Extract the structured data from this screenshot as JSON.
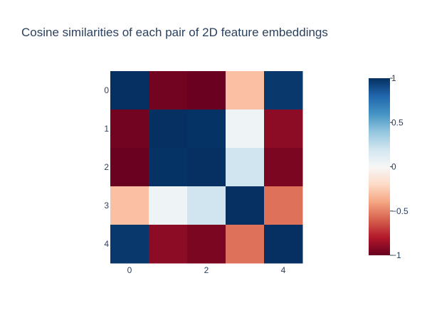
{
  "chart_data": {
    "type": "heatmap",
    "title": "Cosine similarities of each pair of 2D feature embeddings",
    "x_categories": [
      0,
      1,
      2,
      3,
      4
    ],
    "y_categories": [
      0,
      1,
      2,
      3,
      4
    ],
    "x_tick_labels": [
      "0",
      "2",
      "4"
    ],
    "y_tick_labels": [
      "0",
      "1",
      "2",
      "3",
      "4"
    ],
    "z": [
      [
        1.0,
        -0.97,
        -0.99,
        -0.3,
        0.97
      ],
      [
        -0.97,
        1.0,
        0.99,
        0.05,
        -0.9
      ],
      [
        -0.99,
        0.99,
        1.0,
        0.2,
        -0.95
      ],
      [
        -0.3,
        0.05,
        0.2,
        1.0,
        -0.55
      ],
      [
        0.97,
        -0.9,
        -0.95,
        -0.55,
        1.0
      ]
    ],
    "zmin": -1,
    "zmax": 1,
    "colorscale": "RdBu",
    "colorbar": {
      "tick_values": [
        1,
        0.5,
        0,
        -0.5,
        -1
      ],
      "tick_labels": [
        "1",
        "0.5",
        "0",
        "−0.5",
        "−1"
      ]
    },
    "colors": {
      "title": "#2a3f5f",
      "tick": "#2a3f5f"
    }
  }
}
